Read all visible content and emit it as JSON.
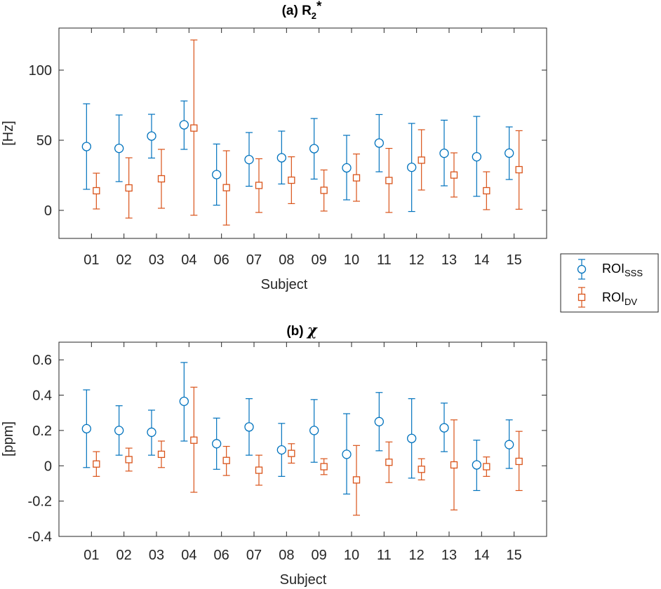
{
  "chart_data": [
    {
      "type": "scatter",
      "title": {
        "prefix": "(a) R",
        "sub": "2",
        "suffix": "*"
      },
      "xlabel": "Subject",
      "ylabel": "[Hz]",
      "categories": [
        "01",
        "02",
        "03",
        "04",
        "06",
        "07",
        "08",
        "09",
        "10",
        "11",
        "12",
        "13",
        "14",
        "15"
      ],
      "ylim": [
        -20,
        130
      ],
      "yticks": [
        0,
        50,
        100
      ],
      "ytick_labels": [
        "0",
        "50",
        "100"
      ],
      "grid": false,
      "series": [
        {
          "name": "ROI_SSS",
          "marker": "circle",
          "values": [
            45.5,
            44.2,
            53.0,
            61.0,
            25.5,
            36.2,
            37.5,
            44.0,
            30.3,
            48.0,
            30.7,
            40.7,
            38.2,
            40.8
          ],
          "err_low": [
            15.0,
            20.5,
            37.3,
            43.5,
            3.7,
            17.2,
            18.8,
            22.3,
            7.5,
            27.5,
            -0.8,
            17.5,
            10.0,
            22.0
          ],
          "err_high": [
            76.0,
            68.0,
            68.5,
            78.0,
            47.3,
            55.5,
            56.5,
            65.5,
            53.5,
            68.3,
            62.0,
            64.3,
            67.0,
            59.5
          ]
        },
        {
          "name": "ROI_DV",
          "marker": "square",
          "values": [
            14.0,
            16.0,
            22.5,
            58.7,
            16.2,
            17.8,
            21.5,
            14.3,
            23.2,
            21.3,
            35.8,
            25.2,
            14.0,
            29.0
          ],
          "err_low": [
            1.0,
            -5.5,
            1.5,
            -3.5,
            -10.5,
            -1.5,
            4.8,
            -0.5,
            6.5,
            -1.5,
            14.5,
            9.5,
            0.5,
            0.8
          ],
          "err_high": [
            26.5,
            37.5,
            43.5,
            121.5,
            42.5,
            36.8,
            38.2,
            28.8,
            40.2,
            44.2,
            57.5,
            41.0,
            27.5,
            56.8
          ]
        }
      ]
    },
    {
      "type": "scatter",
      "title": {
        "prefix": "(b) ",
        "symbol": "χ"
      },
      "xlabel": "Subject",
      "ylabel": "[ppm]",
      "categories": [
        "01",
        "02",
        "03",
        "04",
        "06",
        "07",
        "08",
        "09",
        "10",
        "11",
        "12",
        "13",
        "14",
        "15"
      ],
      "ylim": [
        -0.4,
        0.7
      ],
      "yticks": [
        -0.4,
        -0.2,
        0,
        0.2,
        0.4,
        0.6
      ],
      "ytick_labels": [
        "-0.4",
        "-0.2",
        "0",
        "0.2",
        "0.4",
        "0.6"
      ],
      "grid": false,
      "series": [
        {
          "name": "ROI_SSS",
          "marker": "circle",
          "values": [
            0.21,
            0.2,
            0.19,
            0.365,
            0.125,
            0.22,
            0.09,
            0.2,
            0.065,
            0.25,
            0.155,
            0.215,
            0.005,
            0.12
          ],
          "err_low": [
            -0.01,
            0.06,
            0.06,
            0.14,
            -0.02,
            0.06,
            -0.06,
            0.02,
            -0.16,
            0.085,
            -0.07,
            0.08,
            -0.14,
            -0.015
          ],
          "err_high": [
            0.43,
            0.34,
            0.315,
            0.585,
            0.27,
            0.38,
            0.24,
            0.375,
            0.295,
            0.415,
            0.38,
            0.355,
            0.145,
            0.26
          ]
        },
        {
          "name": "ROI_DV",
          "marker": "square",
          "values": [
            0.01,
            0.035,
            0.065,
            0.145,
            0.03,
            -0.025,
            0.07,
            -0.005,
            -0.08,
            0.02,
            -0.02,
            0.005,
            -0.005,
            0.025
          ],
          "err_low": [
            -0.06,
            -0.03,
            -0.01,
            -0.15,
            -0.055,
            -0.11,
            0.015,
            -0.05,
            -0.28,
            -0.095,
            -0.08,
            -0.25,
            -0.06,
            -0.14
          ],
          "err_high": [
            0.08,
            0.1,
            0.14,
            0.445,
            0.11,
            0.06,
            0.125,
            0.04,
            0.115,
            0.135,
            0.04,
            0.26,
            0.05,
            0.195
          ]
        }
      ]
    }
  ],
  "legend": {
    "placement": "right, between panels",
    "entries": [
      {
        "label": "ROI",
        "sub": "SSS",
        "marker": "circle",
        "color": "#0072BD"
      },
      {
        "label": "ROI",
        "sub": "DV",
        "marker": "square",
        "color": "#D95319"
      }
    ]
  },
  "colors": {
    "series_1": "#0072BD",
    "series_2": "#D95319",
    "axis": "#262626",
    "legend_border": "#262626",
    "background": "#FFFFFF"
  }
}
